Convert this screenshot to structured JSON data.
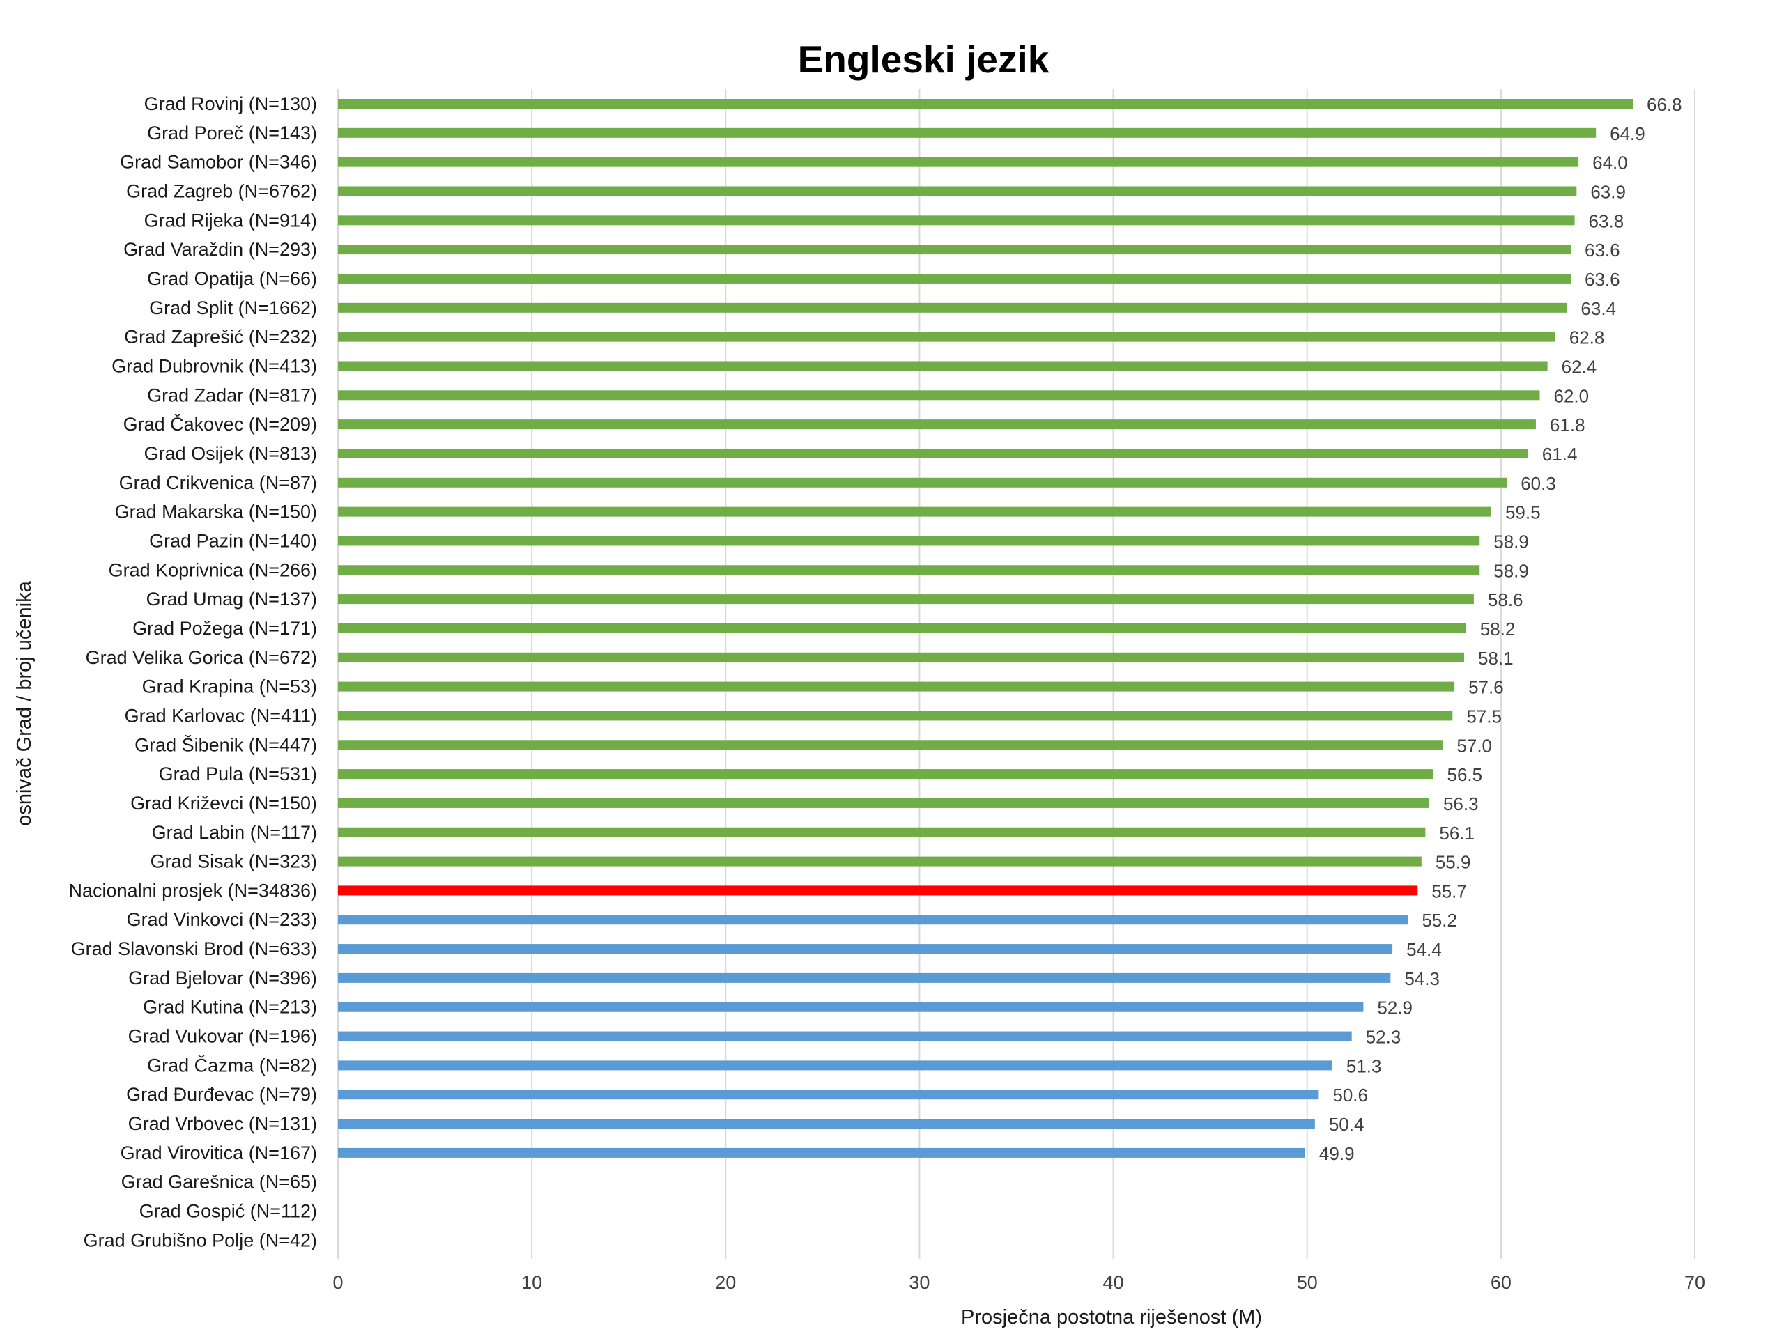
{
  "chart_data": {
    "type": "bar",
    "orientation": "horizontal",
    "title": "Engleski jezik",
    "xlabel": "Prosječna postotna riješenost (M)",
    "ylabel": "osnivač Grad / broj učenika",
    "xlim": [
      0,
      70
    ],
    "xticks": [
      0,
      10,
      20,
      30,
      40,
      50,
      60,
      70
    ],
    "grid": true,
    "legend": "none",
    "colors": {
      "above": "#70AD47",
      "national": "#FF0000",
      "below": "#5B9BD5"
    },
    "bars": [
      {
        "category": "Grad Rovinj (N=130)",
        "value": 66.8,
        "label": "66.8",
        "group": "above"
      },
      {
        "category": "Grad Poreč (N=143)",
        "value": 64.9,
        "label": "64.9",
        "group": "above"
      },
      {
        "category": "Grad Samobor (N=346)",
        "value": 64.0,
        "label": "64.0",
        "group": "above"
      },
      {
        "category": "Grad Zagreb (N=6762)",
        "value": 63.9,
        "label": "63.9",
        "group": "above"
      },
      {
        "category": "Grad Rijeka (N=914)",
        "value": 63.8,
        "label": "63.8",
        "group": "above"
      },
      {
        "category": "Grad Varaždin (N=293)",
        "value": 63.6,
        "label": "63.6",
        "group": "above"
      },
      {
        "category": "Grad Opatija (N=66)",
        "value": 63.6,
        "label": "63.6",
        "group": "above"
      },
      {
        "category": "Grad Split (N=1662)",
        "value": 63.4,
        "label": "63.4",
        "group": "above"
      },
      {
        "category": "Grad Zaprešić (N=232)",
        "value": 62.8,
        "label": "62.8",
        "group": "above"
      },
      {
        "category": "Grad Dubrovnik (N=413)",
        "value": 62.4,
        "label": "62.4",
        "group": "above"
      },
      {
        "category": "Grad Zadar (N=817)",
        "value": 62.0,
        "label": "62.0",
        "group": "above"
      },
      {
        "category": "Grad Čakovec (N=209)",
        "value": 61.8,
        "label": "61.8",
        "group": "above"
      },
      {
        "category": "Grad Osijek (N=813)",
        "value": 61.4,
        "label": "61.4",
        "group": "above"
      },
      {
        "category": "Grad Crikvenica (N=87)",
        "value": 60.3,
        "label": "60.3",
        "group": "above"
      },
      {
        "category": "Grad Makarska (N=150)",
        "value": 59.5,
        "label": "59.5",
        "group": "above"
      },
      {
        "category": "Grad Pazin (N=140)",
        "value": 58.9,
        "label": "58.9",
        "group": "above"
      },
      {
        "category": "Grad Koprivnica (N=266)",
        "value": 58.9,
        "label": "58.9",
        "group": "above"
      },
      {
        "category": "Grad Umag (N=137)",
        "value": 58.6,
        "label": "58.6",
        "group": "above"
      },
      {
        "category": "Grad Požega (N=171)",
        "value": 58.2,
        "label": "58.2",
        "group": "above"
      },
      {
        "category": "Grad Velika Gorica (N=672)",
        "value": 58.1,
        "label": "58.1",
        "group": "above"
      },
      {
        "category": "Grad Krapina (N=53)",
        "value": 57.6,
        "label": "57.6",
        "group": "above"
      },
      {
        "category": "Grad Karlovac (N=411)",
        "value": 57.5,
        "label": "57.5",
        "group": "above"
      },
      {
        "category": "Grad Šibenik (N=447)",
        "value": 57.0,
        "label": "57.0",
        "group": "above"
      },
      {
        "category": "Grad Pula (N=531)",
        "value": 56.5,
        "label": "56.5",
        "group": "above"
      },
      {
        "category": "Grad Križevci (N=150)",
        "value": 56.3,
        "label": "56.3",
        "group": "above"
      },
      {
        "category": "Grad Labin (N=117)",
        "value": 56.1,
        "label": "56.1",
        "group": "above"
      },
      {
        "category": "Grad Sisak (N=323)",
        "value": 55.9,
        "label": "55.9",
        "group": "above"
      },
      {
        "category": "Nacionalni prosjek (N=34836)",
        "value": 55.7,
        "label": "55.7",
        "group": "national"
      },
      {
        "category": "Grad Vinkovci (N=233)",
        "value": 55.2,
        "label": "55.2",
        "group": "below"
      },
      {
        "category": "Grad Slavonski Brod (N=633)",
        "value": 54.4,
        "label": "54.4",
        "group": "below"
      },
      {
        "category": "Grad Bjelovar (N=396)",
        "value": 54.3,
        "label": "54.3",
        "group": "below"
      },
      {
        "category": "Grad Kutina (N=213)",
        "value": 52.9,
        "label": "52.9",
        "group": "below"
      },
      {
        "category": "Grad Vukovar (N=196)",
        "value": 52.3,
        "label": "52.3",
        "group": "below"
      },
      {
        "category": "Grad Čazma (N=82)",
        "value": 51.3,
        "label": "51.3",
        "group": "below"
      },
      {
        "category": "Grad Đurđevac (N=79)",
        "value": 50.6,
        "label": "50.6",
        "group": "below"
      },
      {
        "category": "Grad Vrbovec (N=131)",
        "value": 50.4,
        "label": "50.4",
        "group": "below"
      },
      {
        "category": "Grad Virovitica (N=167)",
        "value": 49.9,
        "label": "49.9",
        "group": "below"
      },
      {
        "category": "Grad Garešnica (N=65)",
        "value": null,
        "label": "",
        "group": "none"
      },
      {
        "category": "Grad Gospić (N=112)",
        "value": null,
        "label": "",
        "group": "none"
      },
      {
        "category": "Grad Grubišno Polje (N=42)",
        "value": null,
        "label": "",
        "group": "none"
      }
    ]
  }
}
